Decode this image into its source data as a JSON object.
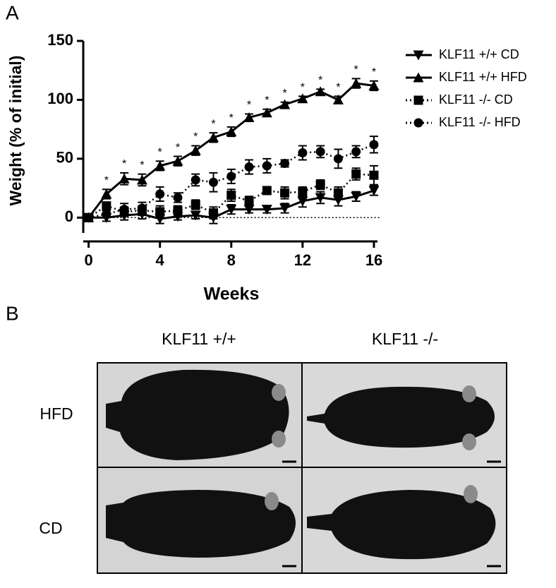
{
  "chart_data": {
    "type": "line",
    "y_label": "Weight (% of initial)",
    "x_label": "Weeks",
    "x": [
      0,
      1,
      2,
      3,
      4,
      5,
      6,
      7,
      8,
      9,
      10,
      11,
      12,
      13,
      14,
      15,
      16
    ],
    "series": [
      {
        "name": "KLF11 +/+ CD",
        "color": "#000000",
        "marker": "triangle-down",
        "dash": "solid",
        "values": [
          0,
          0,
          2,
          3,
          -1,
          1,
          2,
          0,
          7,
          7,
          7,
          8,
          14,
          17,
          15,
          18,
          23
        ],
        "errors": [
          0,
          3,
          4,
          4,
          4,
          3,
          3,
          5,
          4,
          3,
          3,
          4,
          5,
          5,
          5,
          4,
          4
        ]
      },
      {
        "name": "KLF11 +/+ HFD",
        "color": "#000000",
        "marker": "triangle-up",
        "dash": "solid",
        "values": [
          0,
          20,
          33,
          32,
          44,
          48,
          57,
          68,
          73,
          85,
          89,
          96,
          101,
          107,
          100,
          114,
          112
        ],
        "errors": [
          0,
          4,
          5,
          5,
          4,
          4,
          4,
          4,
          4,
          3,
          3,
          2,
          2,
          2,
          3,
          4,
          4
        ]
      },
      {
        "name": "KLF11 -/- CD",
        "color": "#000000",
        "marker": "square",
        "dash": "dotted",
        "values": [
          0,
          10,
          5,
          6,
          5,
          6,
          11,
          4,
          19,
          14,
          23,
          21,
          22,
          28,
          21,
          37,
          36
        ],
        "errors": [
          0,
          3,
          4,
          4,
          5,
          4,
          4,
          5,
          5,
          4,
          3,
          5,
          4,
          4,
          5,
          5,
          8
        ]
      },
      {
        "name": "KLF11 -/- HFD",
        "color": "#000000",
        "marker": "circle",
        "dash": "dotted",
        "values": [
          0,
          3,
          7,
          8,
          20,
          17,
          32,
          30,
          35,
          43,
          44,
          46,
          55,
          56,
          50,
          56,
          62
        ],
        "errors": [
          0,
          3,
          5,
          5,
          6,
          4,
          5,
          8,
          6,
          6,
          6,
          3,
          6,
          5,
          8,
          5,
          7
        ]
      }
    ],
    "annotations": {
      "text": "*",
      "x": [
        1,
        2,
        3,
        4,
        5,
        6,
        7,
        8,
        9,
        10,
        11,
        12,
        13,
        14,
        15,
        16
      ]
    },
    "hline": 0,
    "xlim": [
      -0.3,
      16.2
    ],
    "ylim": [
      -13,
      150
    ],
    "xticks": [
      0,
      4,
      8,
      12,
      16
    ],
    "yticks": [
      0,
      50,
      100,
      150
    ],
    "legend": "outside-right"
  },
  "panel_labels": [
    "A",
    "B"
  ],
  "photo_grid": {
    "columns": [
      "KLF11 +/+",
      "KLF11 -/-"
    ],
    "rows": [
      "HFD",
      "CD"
    ]
  }
}
